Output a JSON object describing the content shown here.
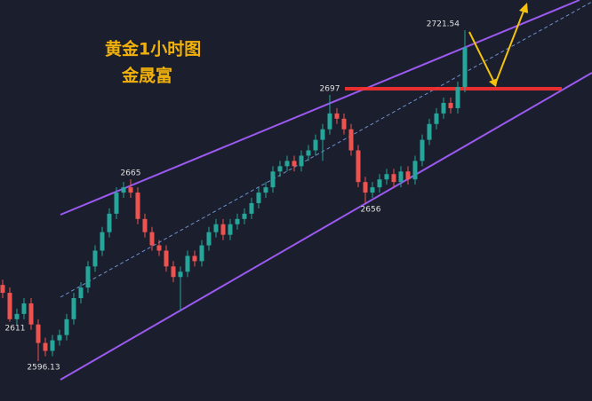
{
  "chart_data": {
    "type": "candlestick",
    "title": "黄金1小时图",
    "subtitle": "金晟富",
    "ylim": [
      2581,
      2733
    ],
    "up_color": "#26a69a",
    "down_color": "#ef5350",
    "open": [
      2625,
      2622,
      2612,
      2614,
      2618,
      2610,
      2603,
      2600,
      2604,
      2606,
      2612,
      2620,
      2624,
      2632,
      2638,
      2645,
      2652,
      2660,
      2662,
      2660,
      2650,
      2645,
      2640,
      2638,
      2632,
      2628,
      2630,
      2636,
      2634,
      2640,
      2645,
      2648,
      2644,
      2648,
      2650,
      2652,
      2656,
      2660,
      2662,
      2668,
      2670,
      2672,
      2670,
      2674,
      2676,
      2680,
      2684,
      2690,
      2688,
      2684,
      2676,
      2664,
      2660,
      2662,
      2665,
      2667,
      2664,
      2668,
      2665,
      2672,
      2680,
      2686,
      2690,
      2694,
      2692,
      2700
    ],
    "high": [
      2627,
      2624,
      2616,
      2620,
      2620,
      2612,
      2605,
      2606,
      2608,
      2614,
      2622,
      2626,
      2634,
      2640,
      2647,
      2654,
      2662,
      2664,
      2665,
      2662,
      2652,
      2647,
      2642,
      2640,
      2634,
      2632,
      2638,
      2638,
      2642,
      2647,
      2650,
      2650,
      2650,
      2652,
      2654,
      2658,
      2662,
      2664,
      2670,
      2672,
      2674,
      2674,
      2676,
      2678,
      2682,
      2686,
      2697,
      2692,
      2690,
      2686,
      2678,
      2666,
      2664,
      2667,
      2669,
      2669,
      2670,
      2670,
      2674,
      2682,
      2688,
      2692,
      2696,
      2696,
      2702,
      2721.54
    ],
    "low": [
      2620,
      2611,
      2610,
      2612,
      2608,
      2596.13,
      2598,
      2598,
      2602,
      2604,
      2610,
      2618,
      2622,
      2630,
      2636,
      2643,
      2650,
      2658,
      2658,
      2648,
      2643,
      2638,
      2636,
      2630,
      2626,
      2615,
      2628,
      2632,
      2632,
      2638,
      2643,
      2642,
      2642,
      2646,
      2648,
      2650,
      2654,
      2658,
      2660,
      2666,
      2668,
      2668,
      2668,
      2672,
      2674,
      2672,
      2682,
      2686,
      2682,
      2674,
      2662,
      2656,
      2658,
      2660,
      2663,
      2662,
      2662,
      2663,
      2663,
      2670,
      2678,
      2684,
      2688,
      2690,
      2690,
      2698
    ],
    "close": [
      2622,
      2612,
      2614,
      2618,
      2610,
      2603,
      2600,
      2604,
      2606,
      2612,
      2620,
      2624,
      2632,
      2638,
      2645,
      2652,
      2660,
      2662,
      2660,
      2650,
      2645,
      2640,
      2638,
      2632,
      2628,
      2630,
      2636,
      2634,
      2640,
      2645,
      2648,
      2644,
      2648,
      2650,
      2652,
      2656,
      2660,
      2662,
      2668,
      2670,
      2672,
      2670,
      2674,
      2676,
      2680,
      2684,
      2690,
      2688,
      2684,
      2676,
      2664,
      2660,
      2662,
      2665,
      2667,
      2664,
      2668,
      2665,
      2672,
      2680,
      2686,
      2690,
      2694,
      2692,
      2700,
      2715
    ],
    "price_labels": [
      2611,
      2596.13,
      2665,
      2697,
      2656,
      2721.54
    ]
  }
}
